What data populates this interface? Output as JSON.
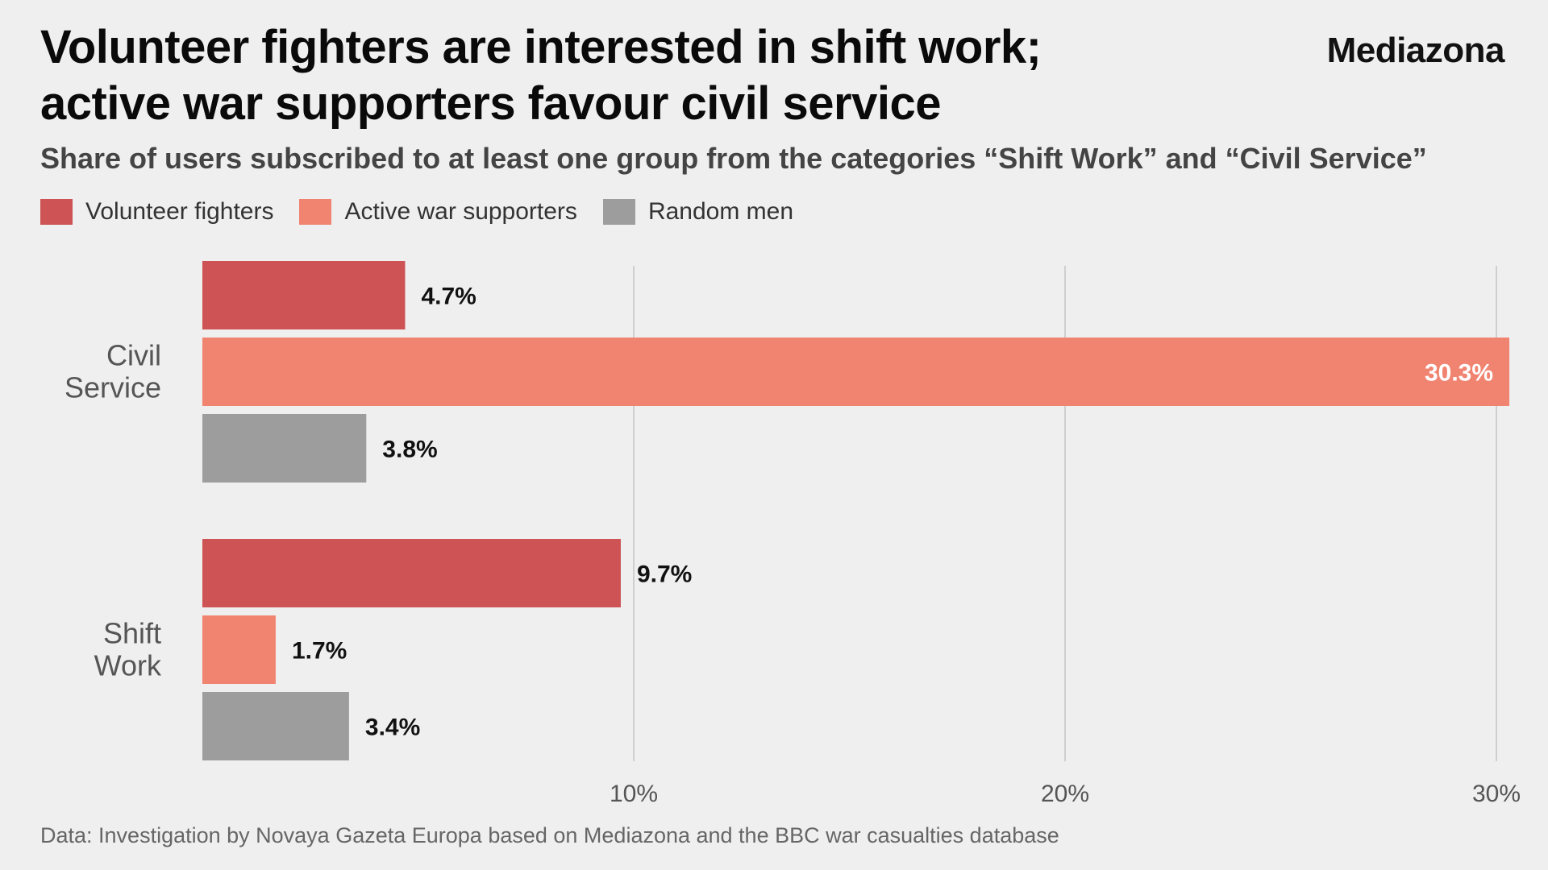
{
  "header": {
    "title_line1": "Volunteer fighters are interested in shift work;",
    "title_line2": "active war supporters favour civil service",
    "brand": "Mediazona",
    "subtitle": "Share of users subscribed to at least one group from the categories “Shift Work” and “Civil Service”"
  },
  "legend": [
    {
      "label": "Volunteer fighters",
      "color": "#cd5355"
    },
    {
      "label": "Active war supporters",
      "color": "#f08471"
    },
    {
      "label": "Random men",
      "color": "#9d9d9d"
    }
  ],
  "chart_data": {
    "type": "bar",
    "orientation": "horizontal",
    "title": "Volunteer fighters are interested in shift work; active war supporters favour civil service",
    "categories": [
      [
        "Civil",
        "Service"
      ],
      [
        "Shift",
        "Work"
      ]
    ],
    "series": [
      {
        "name": "Volunteer fighters",
        "color": "#cd5355",
        "values": [
          4.7,
          9.7
        ],
        "labels": [
          "4.7%",
          "9.7%"
        ]
      },
      {
        "name": "Active war supporters",
        "color": "#f08471",
        "values": [
          30.3,
          1.7
        ],
        "labels": [
          "30.3%",
          "1.7%"
        ]
      },
      {
        "name": "Random men",
        "color": "#9d9d9d",
        "values": [
          3.8,
          3.4
        ],
        "labels": [
          "3.8%",
          "3.4%"
        ]
      }
    ],
    "xlim": [
      0,
      30
    ],
    "ticks": [
      10,
      20,
      30
    ],
    "tick_labels": [
      "10%",
      "20%",
      "30%"
    ],
    "grid": true,
    "xlabel": "",
    "ylabel": ""
  },
  "footer": {
    "source": "Data: Investigation by Novaya Gazeta Europa based on Mediazona and the BBC war casualties database"
  }
}
